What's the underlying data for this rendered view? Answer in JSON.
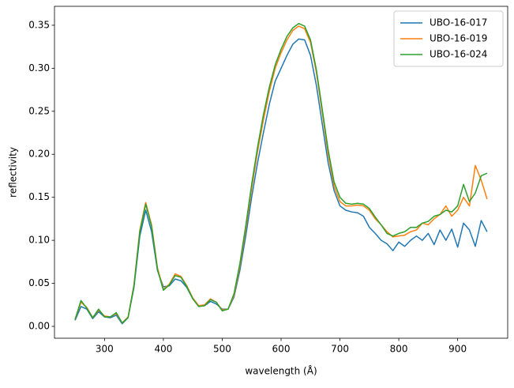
{
  "chart_data": {
    "type": "line",
    "x_label": "wavelength (Å)",
    "y_label": "reflectivity",
    "x": [
      250,
      260,
      270,
      280,
      290,
      300,
      310,
      320,
      330,
      340,
      350,
      360,
      370,
      380,
      390,
      400,
      410,
      420,
      430,
      440,
      450,
      460,
      470,
      480,
      490,
      500,
      510,
      520,
      530,
      540,
      550,
      560,
      570,
      580,
      590,
      600,
      610,
      620,
      630,
      640,
      650,
      660,
      670,
      680,
      690,
      700,
      710,
      720,
      730,
      740,
      750,
      760,
      770,
      780,
      790,
      800,
      810,
      820,
      830,
      840,
      850,
      860,
      870,
      880,
      890,
      900,
      910,
      920,
      930,
      940,
      950
    ],
    "series": [
      {
        "name": "UBO-16-017",
        "color": "#1f77b4",
        "values": [
          0.007,
          0.023,
          0.02,
          0.009,
          0.017,
          0.011,
          0.01,
          0.013,
          0.003,
          0.01,
          0.045,
          0.105,
          0.135,
          0.11,
          0.065,
          0.046,
          0.047,
          0.055,
          0.053,
          0.045,
          0.032,
          0.024,
          0.024,
          0.029,
          0.026,
          0.02,
          0.02,
          0.034,
          0.065,
          0.105,
          0.15,
          0.19,
          0.225,
          0.258,
          0.285,
          0.3,
          0.315,
          0.328,
          0.334,
          0.333,
          0.315,
          0.28,
          0.235,
          0.19,
          0.158,
          0.14,
          0.135,
          0.133,
          0.132,
          0.128,
          0.115,
          0.108,
          0.1,
          0.096,
          0.088,
          0.098,
          0.093,
          0.1,
          0.105,
          0.1,
          0.108,
          0.095,
          0.112,
          0.1,
          0.113,
          0.092,
          0.12,
          0.112,
          0.093,
          0.123,
          0.11
        ]
      },
      {
        "name": "UBO-16-019",
        "color": "#ff7f0e",
        "values": [
          0.008,
          0.028,
          0.022,
          0.01,
          0.019,
          0.012,
          0.011,
          0.015,
          0.004,
          0.011,
          0.048,
          0.112,
          0.144,
          0.118,
          0.068,
          0.043,
          0.049,
          0.061,
          0.058,
          0.047,
          0.033,
          0.024,
          0.025,
          0.032,
          0.028,
          0.019,
          0.02,
          0.036,
          0.07,
          0.113,
          0.16,
          0.203,
          0.24,
          0.273,
          0.3,
          0.318,
          0.333,
          0.344,
          0.349,
          0.346,
          0.33,
          0.295,
          0.248,
          0.2,
          0.163,
          0.145,
          0.14,
          0.14,
          0.141,
          0.14,
          0.135,
          0.125,
          0.118,
          0.11,
          0.104,
          0.105,
          0.106,
          0.11,
          0.112,
          0.12,
          0.118,
          0.125,
          0.13,
          0.14,
          0.128,
          0.135,
          0.15,
          0.14,
          0.187,
          0.17,
          0.148
        ]
      },
      {
        "name": "UBO-16-024",
        "color": "#2ca02c",
        "values": [
          0.008,
          0.03,
          0.021,
          0.01,
          0.02,
          0.011,
          0.011,
          0.016,
          0.004,
          0.01,
          0.047,
          0.11,
          0.142,
          0.116,
          0.066,
          0.042,
          0.048,
          0.059,
          0.057,
          0.046,
          0.032,
          0.023,
          0.024,
          0.031,
          0.028,
          0.018,
          0.02,
          0.038,
          0.073,
          0.117,
          0.165,
          0.208,
          0.246,
          0.278,
          0.304,
          0.322,
          0.337,
          0.347,
          0.352,
          0.349,
          0.333,
          0.298,
          0.252,
          0.205,
          0.168,
          0.15,
          0.143,
          0.142,
          0.143,
          0.142,
          0.137,
          0.127,
          0.118,
          0.108,
          0.105,
          0.108,
          0.11,
          0.115,
          0.115,
          0.12,
          0.122,
          0.128,
          0.13,
          0.135,
          0.133,
          0.14,
          0.165,
          0.145,
          0.155,
          0.175,
          0.178
        ]
      }
    ],
    "xlim": [
      215,
      985
    ],
    "ylim": [
      -0.0138,
      0.372
    ],
    "xticks": [
      300,
      400,
      500,
      600,
      700,
      800,
      900
    ],
    "yticks": [
      {
        "value": 0,
        "label": "0.00"
      },
      {
        "value": 0.05,
        "label": "0.05"
      },
      {
        "value": 0.1,
        "label": "0.10"
      },
      {
        "value": 0.15,
        "label": "0.15"
      },
      {
        "value": 0.2,
        "label": "0.20"
      },
      {
        "value": 0.25,
        "label": "0.25"
      },
      {
        "value": 0.3,
        "label": "0.30"
      },
      {
        "value": 0.35,
        "label": "0.35"
      }
    ],
    "legend": "upper right",
    "grid": false
  }
}
